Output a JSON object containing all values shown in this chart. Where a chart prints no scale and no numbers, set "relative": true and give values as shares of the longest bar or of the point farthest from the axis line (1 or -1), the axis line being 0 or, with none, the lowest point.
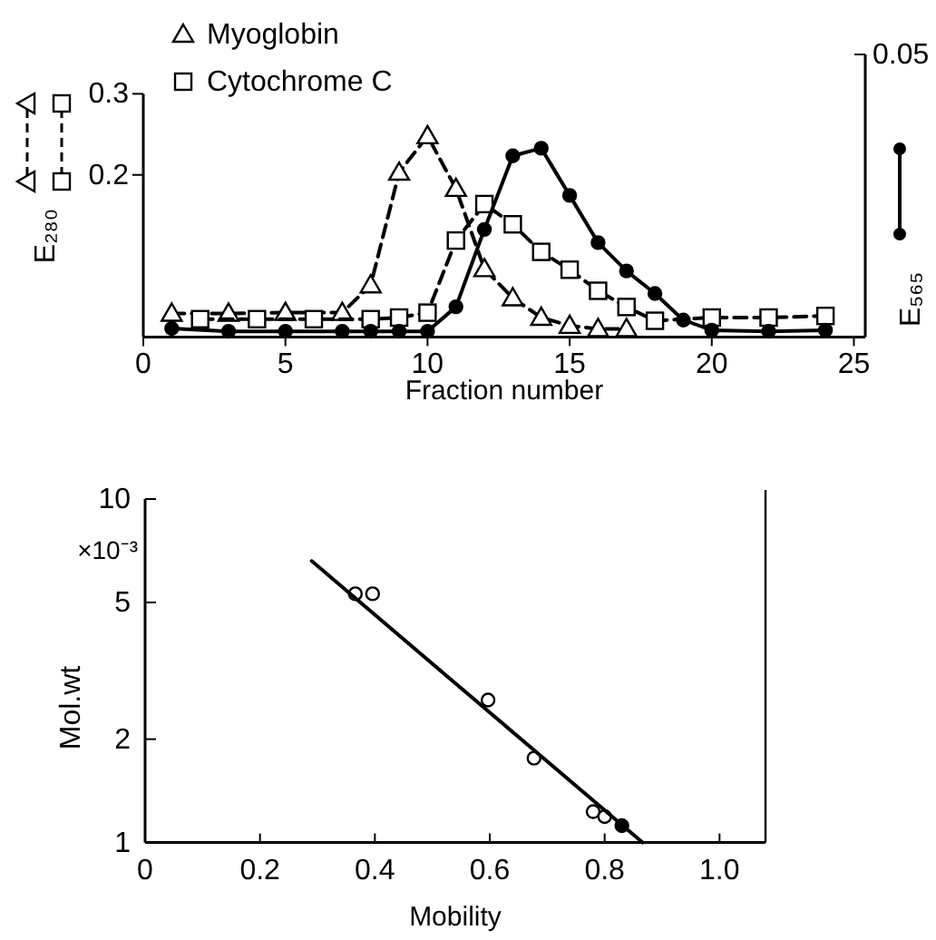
{
  "chart_data": [
    {
      "type": "line",
      "xlabel": "Fraction number",
      "ylabel": "E₂₈₀",
      "xlim": [
        0,
        25.4
      ],
      "xticks": [
        0,
        5,
        10,
        15,
        20,
        25
      ],
      "ylim": [
        0,
        0.3
      ],
      "yticks": [
        0.2,
        0.3
      ],
      "legend": "top left",
      "series": [
        {
          "name": "Myoglobin",
          "color": "#000000",
          "marker": "triangle",
          "line_style": "dashed",
          "x": [
            1,
            3,
            5,
            7,
            8,
            9,
            10,
            11,
            12,
            13,
            14,
            15,
            16,
            17
          ],
          "values": [
            0.029,
            0.029,
            0.03,
            0.03,
            0.064,
            0.203,
            0.248,
            0.183,
            0.084,
            0.048,
            0.024,
            0.014,
            0.01,
            0.01
          ]
        },
        {
          "name": "Cytochrome C",
          "color": "#000000",
          "marker": "square",
          "line_style": "dashed",
          "x": [
            2,
            4,
            6,
            8,
            9,
            10,
            11,
            12,
            13,
            14,
            15,
            16,
            17,
            18,
            20,
            22,
            24
          ],
          "values": [
            0.022,
            0.022,
            0.022,
            0.022,
            0.024,
            0.03,
            0.119,
            0.164,
            0.139,
            0.105,
            0.083,
            0.057,
            0.037,
            0.02,
            0.024,
            0.024,
            0.026
          ]
        }
      ]
    },
    {
      "type": "line",
      "relative": true,
      "ylabel": "E₅₆₅",
      "annotations": [
        "0.05"
      ],
      "xlim": [
        0,
        25.4
      ],
      "marker": "circle",
      "line_style": "solid",
      "series": [
        {
          "color": "#000000",
          "x": [
            1,
            3,
            5,
            7,
            8,
            9,
            10,
            11,
            12,
            13,
            14,
            15,
            16,
            17,
            18,
            19,
            20,
            22,
            24
          ],
          "values": [
            0.045,
            0.03,
            0.03,
            0.03,
            0.03,
            0.03,
            0.03,
            0.16,
            0.57,
            0.96,
            1,
            0.75,
            0.5,
            0.35,
            0.23,
            0.09,
            0.036,
            0.03,
            0.036
          ]
        }
      ]
    },
    {
      "type": "scatter",
      "xlabel": "Mobility",
      "ylabel": "Mol.wt",
      "annotations": [
        "×10⁻³"
      ],
      "log": "y",
      "xlim": [
        0,
        1.08
      ],
      "xticks": [
        0,
        0.2,
        0.4,
        0.6,
        0.8,
        {
          "value": 1,
          "label": "1.0"
        }
      ],
      "ylim": [
        1,
        10
      ],
      "yticks": [
        1,
        2,
        5,
        10
      ],
      "marker": "circle",
      "series": [
        {
          "color": "#ffffff",
          "x": [
            0.366,
            0.396,
            0.597,
            0.677,
            0.78,
            0.8
          ],
          "values": [
            5.3,
            5.3,
            2.6,
            1.76,
            1.23,
            1.19
          ]
        },
        {
          "color": "#000000",
          "x": [
            0.83
          ],
          "values": [
            1.12
          ]
        },
        {
          "type": "line",
          "color": "#000000",
          "marker": "none",
          "x": [
            0.29,
            0.866
          ],
          "values": [
            6.6,
            1
          ]
        }
      ]
    }
  ]
}
